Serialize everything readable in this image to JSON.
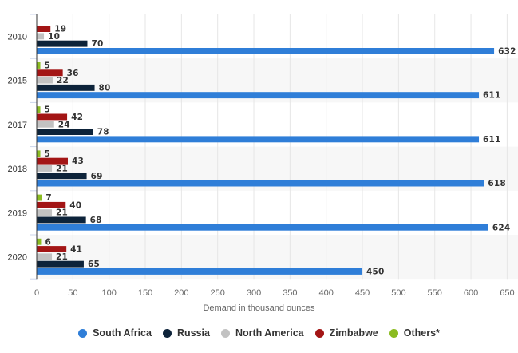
{
  "chart_data": {
    "type": "bar",
    "orientation": "horizontal",
    "categories": [
      "2010",
      "2015",
      "2017",
      "2018",
      "2019",
      "2020"
    ],
    "series": [
      {
        "name": "South Africa",
        "color": "#2f7ed8",
        "values": [
          632,
          611,
          611,
          618,
          624,
          450
        ]
      },
      {
        "name": "Russia",
        "color": "#0d233a",
        "values": [
          70,
          80,
          78,
          69,
          68,
          65
        ]
      },
      {
        "name": "North America",
        "color": "#c2c2c2",
        "values": [
          10,
          22,
          24,
          21,
          21,
          21
        ]
      },
      {
        "name": "Zimbabwe",
        "color": "#a31515",
        "values": [
          19,
          36,
          42,
          43,
          40,
          41
        ]
      },
      {
        "name": "Others*",
        "color": "#8bbc21",
        "values": [
          null,
          5,
          5,
          5,
          7,
          6
        ]
      }
    ],
    "xlabel": "Demand in thousand ounces",
    "ylabel": "",
    "xlim": [
      0,
      665
    ],
    "xticks": [
      0,
      50,
      100,
      150,
      200,
      250,
      300,
      350,
      400,
      450,
      500,
      550,
      600,
      650
    ],
    "grid": true,
    "legend_position": "bottom"
  }
}
